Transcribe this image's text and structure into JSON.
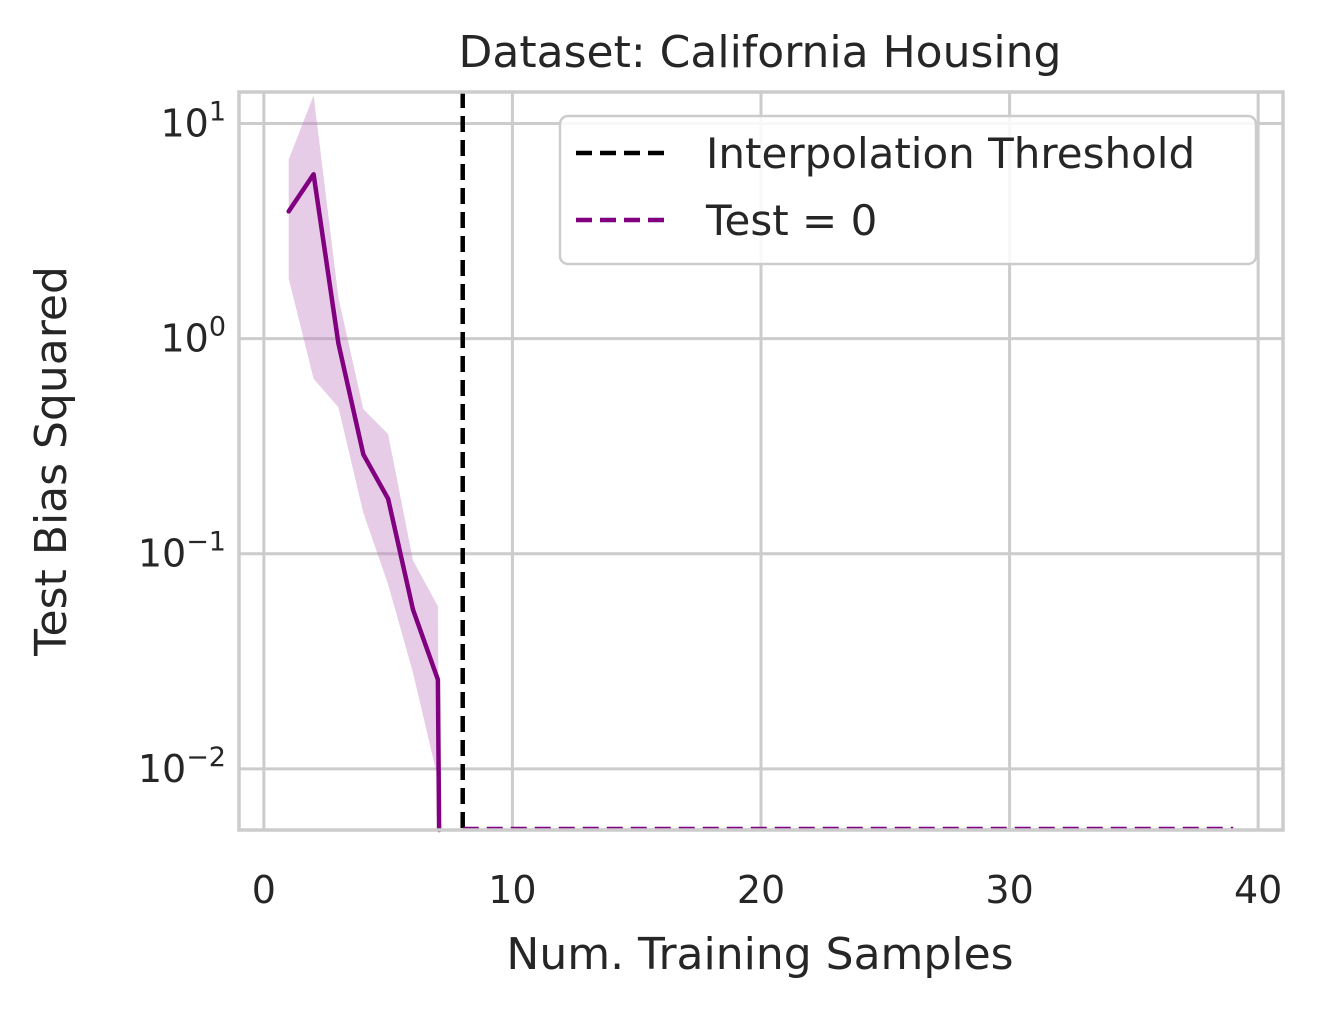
{
  "chart_data": {
    "type": "line",
    "title": "Dataset: California Housing",
    "xlabel": "Num. Training Samples",
    "ylabel": "Test Bias Squared",
    "xlim": [
      -1,
      41
    ],
    "ylim": [
      0.0052,
      14
    ],
    "yscale": "log",
    "grid": true,
    "legend_position": "top-right",
    "x_ticks": [
      {
        "value": 0,
        "label": "0"
      },
      {
        "value": 10,
        "label": "10"
      },
      {
        "value": 20,
        "label": "20"
      },
      {
        "value": 30,
        "label": "30"
      },
      {
        "value": 40,
        "label": "40"
      }
    ],
    "y_ticks": [
      {
        "value": 0.01,
        "base": "10",
        "exp": "−2"
      },
      {
        "value": 0.1,
        "base": "10",
        "exp": "−1"
      },
      {
        "value": 1,
        "base": "10",
        "exp": "0"
      },
      {
        "value": 10,
        "base": "10",
        "exp": "1"
      }
    ],
    "series": [
      {
        "x": [
          1,
          2,
          3,
          4,
          5,
          6,
          7,
          7.05
        ],
        "y": [
          3.9,
          5.8,
          0.95,
          0.29,
          0.18,
          0.055,
          0.026,
          0.0052
        ],
        "y_lower": [
          1.9,
          0.65,
          0.48,
          0.155,
          0.072,
          0.028,
          0.009,
          0.0052
        ],
        "y_upper": [
          6.8,
          13.5,
          1.55,
          0.47,
          0.36,
          0.093,
          0.057,
          0.0052
        ],
        "color": "#800080",
        "band_color": "#c07fc0"
      }
    ],
    "reference_lines": [
      {
        "name": "Interpolation Threshold",
        "orientation": "vertical",
        "x": 8,
        "color": "#000000",
        "style": "dashed"
      },
      {
        "name": "Test = 0",
        "orientation": "horizontal",
        "y": 0.0052,
        "x_range": [
          8,
          39
        ],
        "color": "#800080",
        "style": "dashed"
      }
    ],
    "legend": [
      {
        "label": "Interpolation Threshold",
        "color": "#000000"
      },
      {
        "label": "Test = 0",
        "color": "#800080"
      }
    ]
  }
}
